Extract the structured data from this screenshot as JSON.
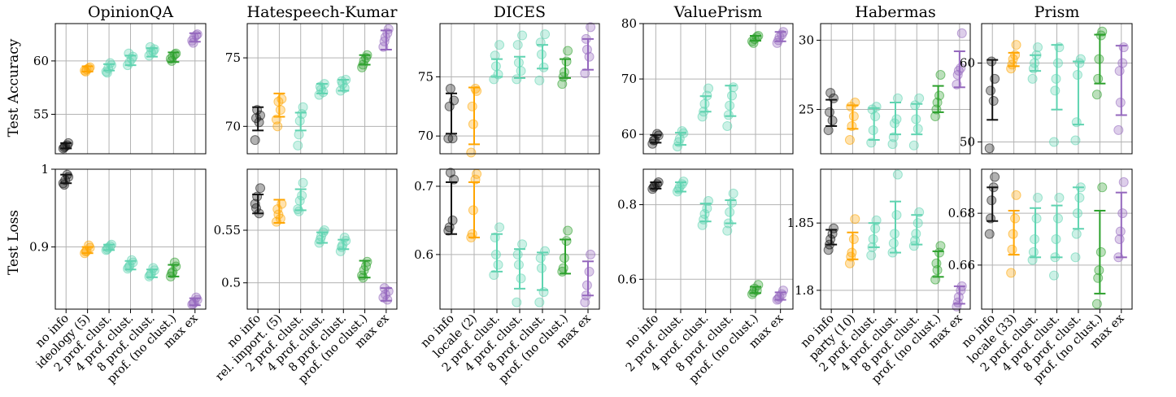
{
  "row_labels": [
    "Test Accuracy",
    "Test Loss"
  ],
  "colors": {
    "no_info": "#111111",
    "demo": "#ffa500",
    "prof": "#5fd3b0",
    "noclust": "#2ca02c",
    "maxex": "#9467bd"
  },
  "chart_data": [
    {
      "type": "scatter",
      "title": "OpinionQA",
      "categories": [
        "no info",
        "ideology (5)",
        "2 prof. clust.",
        "4 prof. clust.",
        "8 prof. clust.",
        "prof. (no clust.)",
        "max ex"
      ],
      "category_colors": [
        "no_info",
        "demo",
        "prof",
        "prof",
        "prof",
        "noclust",
        "maxex"
      ],
      "acc": {
        "ylim": [
          51.3,
          63.5
        ],
        "yticks": [
          55,
          60
        ],
        "points": [
          [
            51.8,
            52.3,
            52.0,
            52.1,
            51.9
          ],
          [
            59.1,
            59.4,
            59.2,
            59.3,
            59.0
          ],
          [
            59.0,
            59.6,
            59.3,
            59.8,
            58.9
          ],
          [
            59.6,
            60.4,
            59.9,
            60.2,
            60.7
          ],
          [
            60.5,
            61.1,
            60.8,
            60.9,
            61.3
          ],
          [
            60.2,
            60.7,
            60.4,
            60.6,
            60.0
          ],
          [
            61.9,
            62.5,
            62.2,
            62.4,
            61.7
          ]
        ],
        "ci": [
          [
            51.8,
            52.3
          ],
          [
            59.0,
            59.5
          ],
          [
            59.1,
            59.7
          ],
          [
            59.6,
            60.5
          ],
          [
            60.4,
            61.2
          ],
          [
            59.9,
            60.8
          ],
          [
            61.8,
            62.6
          ]
        ]
      },
      "loss": {
        "ylim": [
          0.82,
          1.0
        ],
        "yticks": [
          0.9,
          1.0
        ],
        "tick_labels": [
          "0.9",
          "1"
        ],
        "points": [
          [
            0.982,
            0.99,
            0.986,
            0.993,
            0.98
          ],
          [
            0.892,
            0.899,
            0.895,
            0.902,
            0.894
          ],
          [
            0.896,
            0.903,
            0.899,
            0.901,
            0.897
          ],
          [
            0.872,
            0.88,
            0.876,
            0.883,
            0.874
          ],
          [
            0.862,
            0.87,
            0.866,
            0.873,
            0.864
          ],
          [
            0.862,
            0.875,
            0.868,
            0.88,
            0.866
          ],
          [
            0.826,
            0.832,
            0.829,
            0.835,
            0.827
          ]
        ],
        "ci": [
          [
            0.982,
            0.993
          ],
          [
            0.892,
            0.9
          ],
          [
            0.896,
            0.903
          ],
          [
            0.871,
            0.882
          ],
          [
            0.861,
            0.871
          ],
          [
            0.862,
            0.877
          ],
          [
            0.825,
            0.834
          ]
        ]
      }
    },
    {
      "type": "scatter",
      "title": "Hatespeech-Kumar",
      "categories": [
        "no info",
        "rel. import. (5)",
        "2 prof. clust.",
        "4 prof. clust.",
        "8 prof. clust.",
        "prof. (no clust.)",
        "max ex"
      ],
      "category_colors": [
        "no_info",
        "demo",
        "prof",
        "prof",
        "prof",
        "noclust",
        "maxex"
      ],
      "acc": {
        "ylim": [
          68.0,
          77.5
        ],
        "yticks": [
          70,
          75
        ],
        "points": [
          [
            69.0,
            70.8,
            71.2,
            70.3,
            70.6
          ],
          [
            70.5,
            72.0,
            71.8,
            71.2,
            70.0
          ],
          [
            68.6,
            71.4,
            70.4,
            70.9,
            69.4
          ],
          [
            72.3,
            73.1,
            72.7,
            72.5,
            72.9
          ],
          [
            72.6,
            73.4,
            73.1,
            72.8,
            73.3
          ],
          [
            74.3,
            75.2,
            74.8,
            75.0,
            74.5
          ],
          [
            75.8,
            77.1,
            76.5,
            76.8,
            76.2
          ]
        ],
        "ci": [
          [
            69.7,
            71.4
          ],
          [
            70.7,
            72.4
          ],
          [
            69.7,
            71.0
          ],
          [
            72.4,
            73.1
          ],
          [
            72.6,
            73.4
          ],
          [
            74.5,
            75.2
          ],
          [
            75.6,
            77.0
          ]
        ]
      },
      "loss": {
        "ylim": [
          0.475,
          0.608
        ],
        "yticks": [
          0.5,
          0.55
        ],
        "tick_labels": [
          "0.5",
          "0.55"
        ],
        "points": [
          [
            0.575,
            0.59,
            0.582,
            0.566,
            0.571
          ],
          [
            0.558,
            0.575,
            0.565,
            0.561,
            0.57
          ],
          [
            0.57,
            0.595,
            0.578,
            0.583,
            0.568
          ],
          [
            0.538,
            0.55,
            0.544,
            0.548,
            0.541
          ],
          [
            0.53,
            0.54,
            0.536,
            0.543,
            0.534
          ],
          [
            0.507,
            0.52,
            0.512,
            0.516,
            0.505
          ],
          [
            0.486,
            0.492,
            0.489,
            0.484,
            0.495
          ]
        ],
        "ci": [
          [
            0.566,
            0.584
          ],
          [
            0.557,
            0.579
          ],
          [
            0.569,
            0.589
          ],
          [
            0.538,
            0.548
          ],
          [
            0.532,
            0.541
          ],
          [
            0.505,
            0.521
          ],
          [
            0.483,
            0.495
          ]
        ]
      }
    },
    {
      "type": "scatter",
      "title": "DICES",
      "categories": [
        "no info",
        "locale (2)",
        "2 prof. clust.",
        "4 prof. clust.",
        "8 prof. clust.",
        "prof. (no clust.)",
        "max ex"
      ],
      "category_colors": [
        "no_info",
        "demo",
        "prof",
        "prof",
        "prof",
        "noclust",
        "maxex"
      ],
      "acc": {
        "ylim": [
          68.5,
          79.5
        ],
        "yticks": [
          70,
          75
        ],
        "points": [
          [
            69.8,
            73.0,
            74.0,
            69.8,
            72.5
          ],
          [
            68.6,
            73.8,
            71.0,
            74.0,
            72.5
          ],
          [
            74.8,
            77.7,
            75.9,
            75.2,
            76.8
          ],
          [
            74.8,
            78.5,
            76.2,
            75.5,
            77.7
          ],
          [
            74.7,
            78.6,
            76.9,
            75.8,
            77.9
          ],
          [
            74.4,
            77.2,
            75.4,
            76.3,
            75.0
          ],
          [
            75.3,
            79.2,
            77.3,
            76.7,
            78.2
          ]
        ],
        "ci": [
          [
            70.2,
            73.6
          ],
          [
            69.3,
            74.1
          ],
          [
            75.0,
            76.5
          ],
          [
            74.9,
            76.7
          ],
          [
            75.7,
            77.7
          ],
          [
            74.9,
            76.5
          ],
          [
            75.6,
            78.2
          ]
        ]
      },
      "loss": {
        "ylim": [
          0.52,
          0.725
        ],
        "yticks": [
          0.6,
          0.7
        ],
        "tick_labels": [
          "0.6",
          "0.7"
        ],
        "points": [
          [
            0.635,
            0.71,
            0.72,
            0.65,
            0.64
          ],
          [
            0.625,
            0.718,
            0.665,
            0.71,
            0.63
          ],
          [
            0.57,
            0.64,
            0.6,
            0.585,
            0.625
          ],
          [
            0.53,
            0.615,
            0.585,
            0.565,
            0.6
          ],
          [
            0.53,
            0.605,
            0.58,
            0.545,
            0.595
          ],
          [
            0.575,
            0.635,
            0.595,
            0.62,
            0.58
          ],
          [
            0.53,
            0.6,
            0.555,
            0.575,
            0.54
          ]
        ],
        "ci": [
          [
            0.63,
            0.706
          ],
          [
            0.625,
            0.706
          ],
          [
            0.575,
            0.63
          ],
          [
            0.55,
            0.608
          ],
          [
            0.548,
            0.603
          ],
          [
            0.572,
            0.622
          ],
          [
            0.54,
            0.59
          ]
        ]
      }
    },
    {
      "type": "scatter",
      "title": "ValuePrism",
      "categories": [
        "no info",
        "2 prof. clust.",
        "4 prof. clust.",
        "8 prof. clust.",
        "prof. (no clust.)",
        "max ex"
      ],
      "category_colors": [
        "no_info",
        "prof",
        "prof",
        "prof",
        "noclust",
        "maxex"
      ],
      "acc": {
        "ylim": [
          56.5,
          80.0
        ],
        "yticks": [
          60,
          70,
          80
        ],
        "points": [
          [
            58.3,
            59.8,
            59.0,
            60.1,
            58.9
          ],
          [
            57.8,
            60.2,
            59.2,
            60.6,
            58.6
          ],
          [
            63.2,
            68.3,
            65.5,
            67.0,
            64.1
          ],
          [
            61.5,
            68.5,
            65.2,
            67.0,
            63.5
          ],
          [
            76.8,
            77.8,
            77.2,
            77.6,
            76.5
          ],
          [
            76.5,
            78.5,
            77.6,
            78.0,
            77.0
          ]
        ],
        "ci": [
          [
            58.5,
            59.9
          ],
          [
            58.1,
            60.3
          ],
          [
            64.1,
            66.9
          ],
          [
            63.3,
            68.8
          ],
          [
            76.9,
            77.8
          ],
          [
            76.8,
            78.5
          ]
        ]
      },
      "loss": {
        "ylim": [
          0.52,
          0.895
        ],
        "yticks": [
          0.6,
          0.8
        ],
        "tick_labels": [
          "0.6",
          "0.8"
        ],
        "points": [
          [
            0.842,
            0.86,
            0.85,
            0.855,
            0.847
          ],
          [
            0.835,
            0.862,
            0.848,
            0.855,
            0.841
          ],
          [
            0.745,
            0.81,
            0.775,
            0.79,
            0.76
          ],
          [
            0.73,
            0.83,
            0.78,
            0.805,
            0.75
          ],
          [
            0.56,
            0.585,
            0.575,
            0.57,
            0.565
          ],
          [
            0.545,
            0.57,
            0.553,
            0.56,
            0.548
          ]
        ],
        "ci": [
          [
            0.843,
            0.86
          ],
          [
            0.835,
            0.86
          ],
          [
            0.755,
            0.803
          ],
          [
            0.75,
            0.812
          ],
          [
            0.563,
            0.58
          ],
          [
            0.545,
            0.565
          ]
        ]
      }
    },
    {
      "type": "scatter",
      "title": "Habermas",
      "categories": [
        "no info",
        "party (10)",
        "2 prof. clust.",
        "4 prof. clust.",
        "8 prof. clust.",
        "prof. (no clust.)",
        "max ex"
      ],
      "category_colors": [
        "no_info",
        "demo",
        "prof",
        "prof",
        "prof",
        "noclust",
        "maxex"
      ],
      "acc": {
        "ylim": [
          21.8,
          31.2
        ],
        "yticks": [
          25,
          30
        ],
        "points": [
          [
            23.5,
            25.8,
            26.2,
            24.2,
            24.8
          ],
          [
            22.8,
            25.5,
            23.8,
            24.5,
            25.2
          ],
          [
            22.6,
            25.2,
            23.5,
            24.5,
            25.0
          ],
          [
            22.5,
            25.8,
            24.0,
            24.3,
            23.0
          ],
          [
            22.4,
            25.8,
            24.3,
            23.6,
            25.3
          ],
          [
            24.5,
            27.5,
            25.5,
            26.0,
            25.0
          ],
          [
            26.8,
            30.5,
            27.8,
            28.0,
            27.5
          ]
        ],
        "ci": [
          [
            23.8,
            25.7
          ],
          [
            23.6,
            25.3
          ],
          [
            22.8,
            25.1
          ],
          [
            23.2,
            25.5
          ],
          [
            23.2,
            25.4
          ],
          [
            24.8,
            26.7
          ],
          [
            26.6,
            29.2
          ]
        ]
      },
      "loss": {
        "ylim": [
          1.786,
          1.89
        ],
        "yticks": [
          1.8,
          1.85
        ],
        "tick_labels": [
          "1.8",
          "1.85"
        ],
        "points": [
          [
            1.83,
            1.846,
            1.838,
            1.842,
            1.834
          ],
          [
            1.82,
            1.853,
            1.828,
            1.838,
            1.825
          ],
          [
            1.826,
            1.852,
            1.838,
            1.846,
            1.832
          ],
          [
            1.828,
            1.886,
            1.842,
            1.856,
            1.835
          ],
          [
            1.833,
            1.858,
            1.842,
            1.85,
            1.837
          ],
          [
            1.808,
            1.833,
            1.815,
            1.828,
            1.82
          ],
          [
            1.788,
            1.803,
            1.795,
            1.8,
            1.791
          ]
        ],
        "ci": [
          [
            1.834,
            1.845
          ],
          [
            1.823,
            1.843
          ],
          [
            1.832,
            1.85
          ],
          [
            1.828,
            1.866
          ],
          [
            1.834,
            1.856
          ],
          [
            1.81,
            1.829
          ],
          [
            1.79,
            1.803
          ]
        ]
      }
    },
    {
      "type": "scatter",
      "title": "Prism",
      "categories": [
        "no info",
        "locale (33)",
        "2 prof. clust.",
        "4 prof. clust.",
        "8 prof. clust.",
        "prof. (no clust.)",
        "max ex"
      ],
      "category_colors": [
        "no_info",
        "demo",
        "prof",
        "prof",
        "prof",
        "noclust",
        "maxex"
      ],
      "acc": {
        "ylim": [
          48.5,
          65.0
        ],
        "yticks": [
          50,
          60
        ],
        "points": [
          [
            49.2,
            58.0,
            60.2,
            55.2,
            56.5
          ],
          [
            59.3,
            62.3,
            60.5,
            61.0,
            59.8
          ],
          [
            58.0,
            62.0,
            60.0,
            61.0,
            59.3
          ],
          [
            50.0,
            62.0,
            58.0,
            60.0,
            56.5
          ],
          [
            50.2,
            60.5,
            58.5,
            60.0,
            52.5
          ],
          [
            56.0,
            64.0,
            60.5,
            63.5,
            58.0
          ],
          [
            51.5,
            62.0,
            55.0,
            60.0,
            59.0
          ]
        ],
        "ci": [
          [
            52.8,
            60.4
          ],
          [
            59.6,
            61.3
          ],
          [
            59.0,
            61.0
          ],
          [
            54.1,
            62.3
          ],
          [
            52.2,
            60.2
          ],
          [
            57.4,
            63.6
          ],
          [
            53.4,
            62.2
          ]
        ]
      },
      "loss": {
        "ylim": [
          0.643,
          0.697
        ],
        "yticks": [
          0.66,
          0.68
        ],
        "tick_labels": [
          "0.66",
          "0.68"
        ],
        "points": [
          [
            0.672,
            0.694,
            0.685,
            0.69,
            0.678
          ],
          [
            0.657,
            0.687,
            0.672,
            0.678,
            0.666
          ],
          [
            0.662,
            0.686,
            0.67,
            0.678,
            0.665
          ],
          [
            0.656,
            0.686,
            0.67,
            0.678,
            0.663
          ],
          [
            0.663,
            0.69,
            0.68,
            0.686,
            0.672
          ],
          [
            0.645,
            0.69,
            0.658,
            0.665,
            0.655
          ],
          [
            0.663,
            0.692,
            0.673,
            0.68,
            0.67
          ]
        ],
        "ci": [
          [
            0.677,
            0.69
          ],
          [
            0.664,
            0.681
          ],
          [
            0.663,
            0.682
          ],
          [
            0.663,
            0.683
          ],
          [
            0.674,
            0.69
          ],
          [
            0.649,
            0.681
          ],
          [
            0.663,
            0.688
          ]
        ]
      }
    }
  ]
}
